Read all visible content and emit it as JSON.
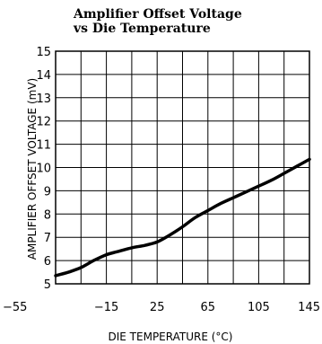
{
  "chart_data": {
    "type": "line",
    "title_line1": "Amplifier Offset Voltage",
    "title_line2": "vs Die Temperature",
    "xlabel": "DIE TEMPERATURE (°C)",
    "ylabel": "AMPLIFIER OFFSET VOLTAGE (mV)",
    "xlim": [
      -55,
      145
    ],
    "ylim": [
      5,
      15
    ],
    "x_ticks": [
      -55,
      -15,
      25,
      65,
      105,
      145
    ],
    "x_tick_labels": [
      "−55",
      "−15",
      "25",
      "65",
      "105",
      "145"
    ],
    "x_grid_step": 20,
    "y_ticks": [
      5,
      6,
      7,
      8,
      9,
      10,
      11,
      12,
      13,
      14,
      15
    ],
    "y_tick_labels": [
      "5",
      "6",
      "7",
      "8",
      "9",
      "10",
      "11",
      "12",
      "13",
      "14",
      "15"
    ],
    "grid": true,
    "colors": {
      "line": "#000000",
      "grid": "#000000",
      "background": "#ffffff"
    },
    "series": [
      {
        "x": [
          -55,
          -45,
          -35,
          -25,
          -15,
          -5,
          5,
          15,
          25,
          35,
          45,
          55,
          65,
          75,
          85,
          95,
          105,
          115,
          125,
          135,
          145
        ],
        "y": [
          5.35,
          5.5,
          5.7,
          6.0,
          6.25,
          6.4,
          6.55,
          6.65,
          6.8,
          7.1,
          7.45,
          7.85,
          8.15,
          8.45,
          8.7,
          8.95,
          9.2,
          9.45,
          9.75,
          10.05,
          10.35
        ]
      }
    ]
  }
}
